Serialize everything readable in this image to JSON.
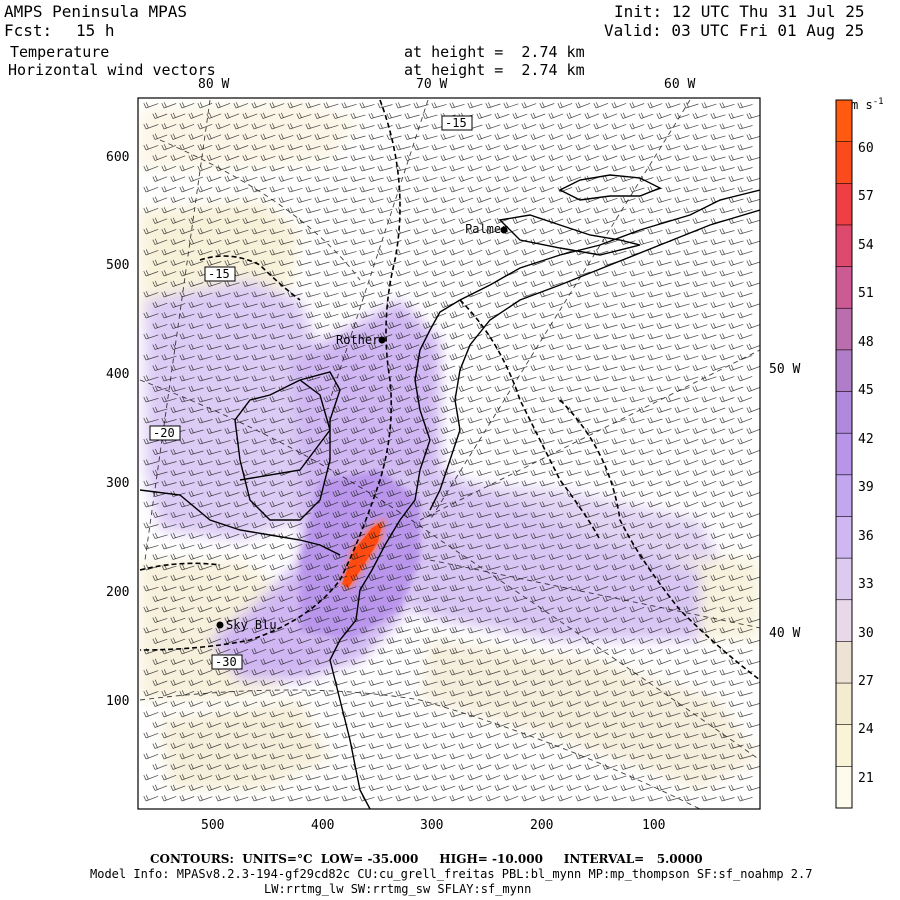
{
  "header": {
    "model": "AMPS Peninsula MPAS",
    "fcst_label": "Fcst:",
    "fcst_value": "15 h",
    "field1": "Temperature",
    "field2": "Horizontal wind vectors",
    "height1": "at height =  2.74 km",
    "height2": "at height =  2.74 km",
    "init": "Init: 12 UTC Thu 31 Jul 25",
    "valid": "Valid: 03 UTC Fri 01 Aug 25"
  },
  "longitudes": [
    "80 W",
    "70 W",
    "60 W",
    "50 W",
    "40 W"
  ],
  "x_ticks": [
    "500",
    "400",
    "300",
    "200",
    "100"
  ],
  "y_ticks": [
    "600",
    "500",
    "400",
    "300",
    "200",
    "100"
  ],
  "places": [
    "Palmer",
    "Rother",
    "Sky Blu"
  ],
  "contour_labels": [
    "-15",
    "-15",
    "-20",
    "-30"
  ],
  "colorbar": {
    "unit": "m s",
    "unit_exp": "-1",
    "ticks": [
      "60",
      "57",
      "54",
      "51",
      "48",
      "45",
      "42",
      "39",
      "36",
      "33",
      "30",
      "27",
      "24",
      "21"
    ],
    "colors": [
      "#fdfbec",
      "#f9f4d8",
      "#f3ecd0",
      "#ede2d4",
      "#e8d8e8",
      "#dccbef",
      "#cfb8f1",
      "#c3a7ee",
      "#b895e9",
      "#b089dc",
      "#b07ec8",
      "#bb6eae",
      "#cc5a93",
      "#de4a6e",
      "#f03e45",
      "#fb4a1c",
      "#ff5a10"
    ]
  },
  "footer": {
    "contours": "CONTOURS:  UNITS=°C  LOW= -35.000     HIGH= -10.000     INTERVAL=   5.0000",
    "model_info": "Model Info: MPASv8.2.3-194-gf29cd82c CU:cu_grell_freitas PBL:bl_mynn MP:mp_thompson SF:sf_noahmp 2.7",
    "physics": "LW:rrtmg_lw SW:rrtmg_sw SFLAY:sf_mynn"
  }
}
